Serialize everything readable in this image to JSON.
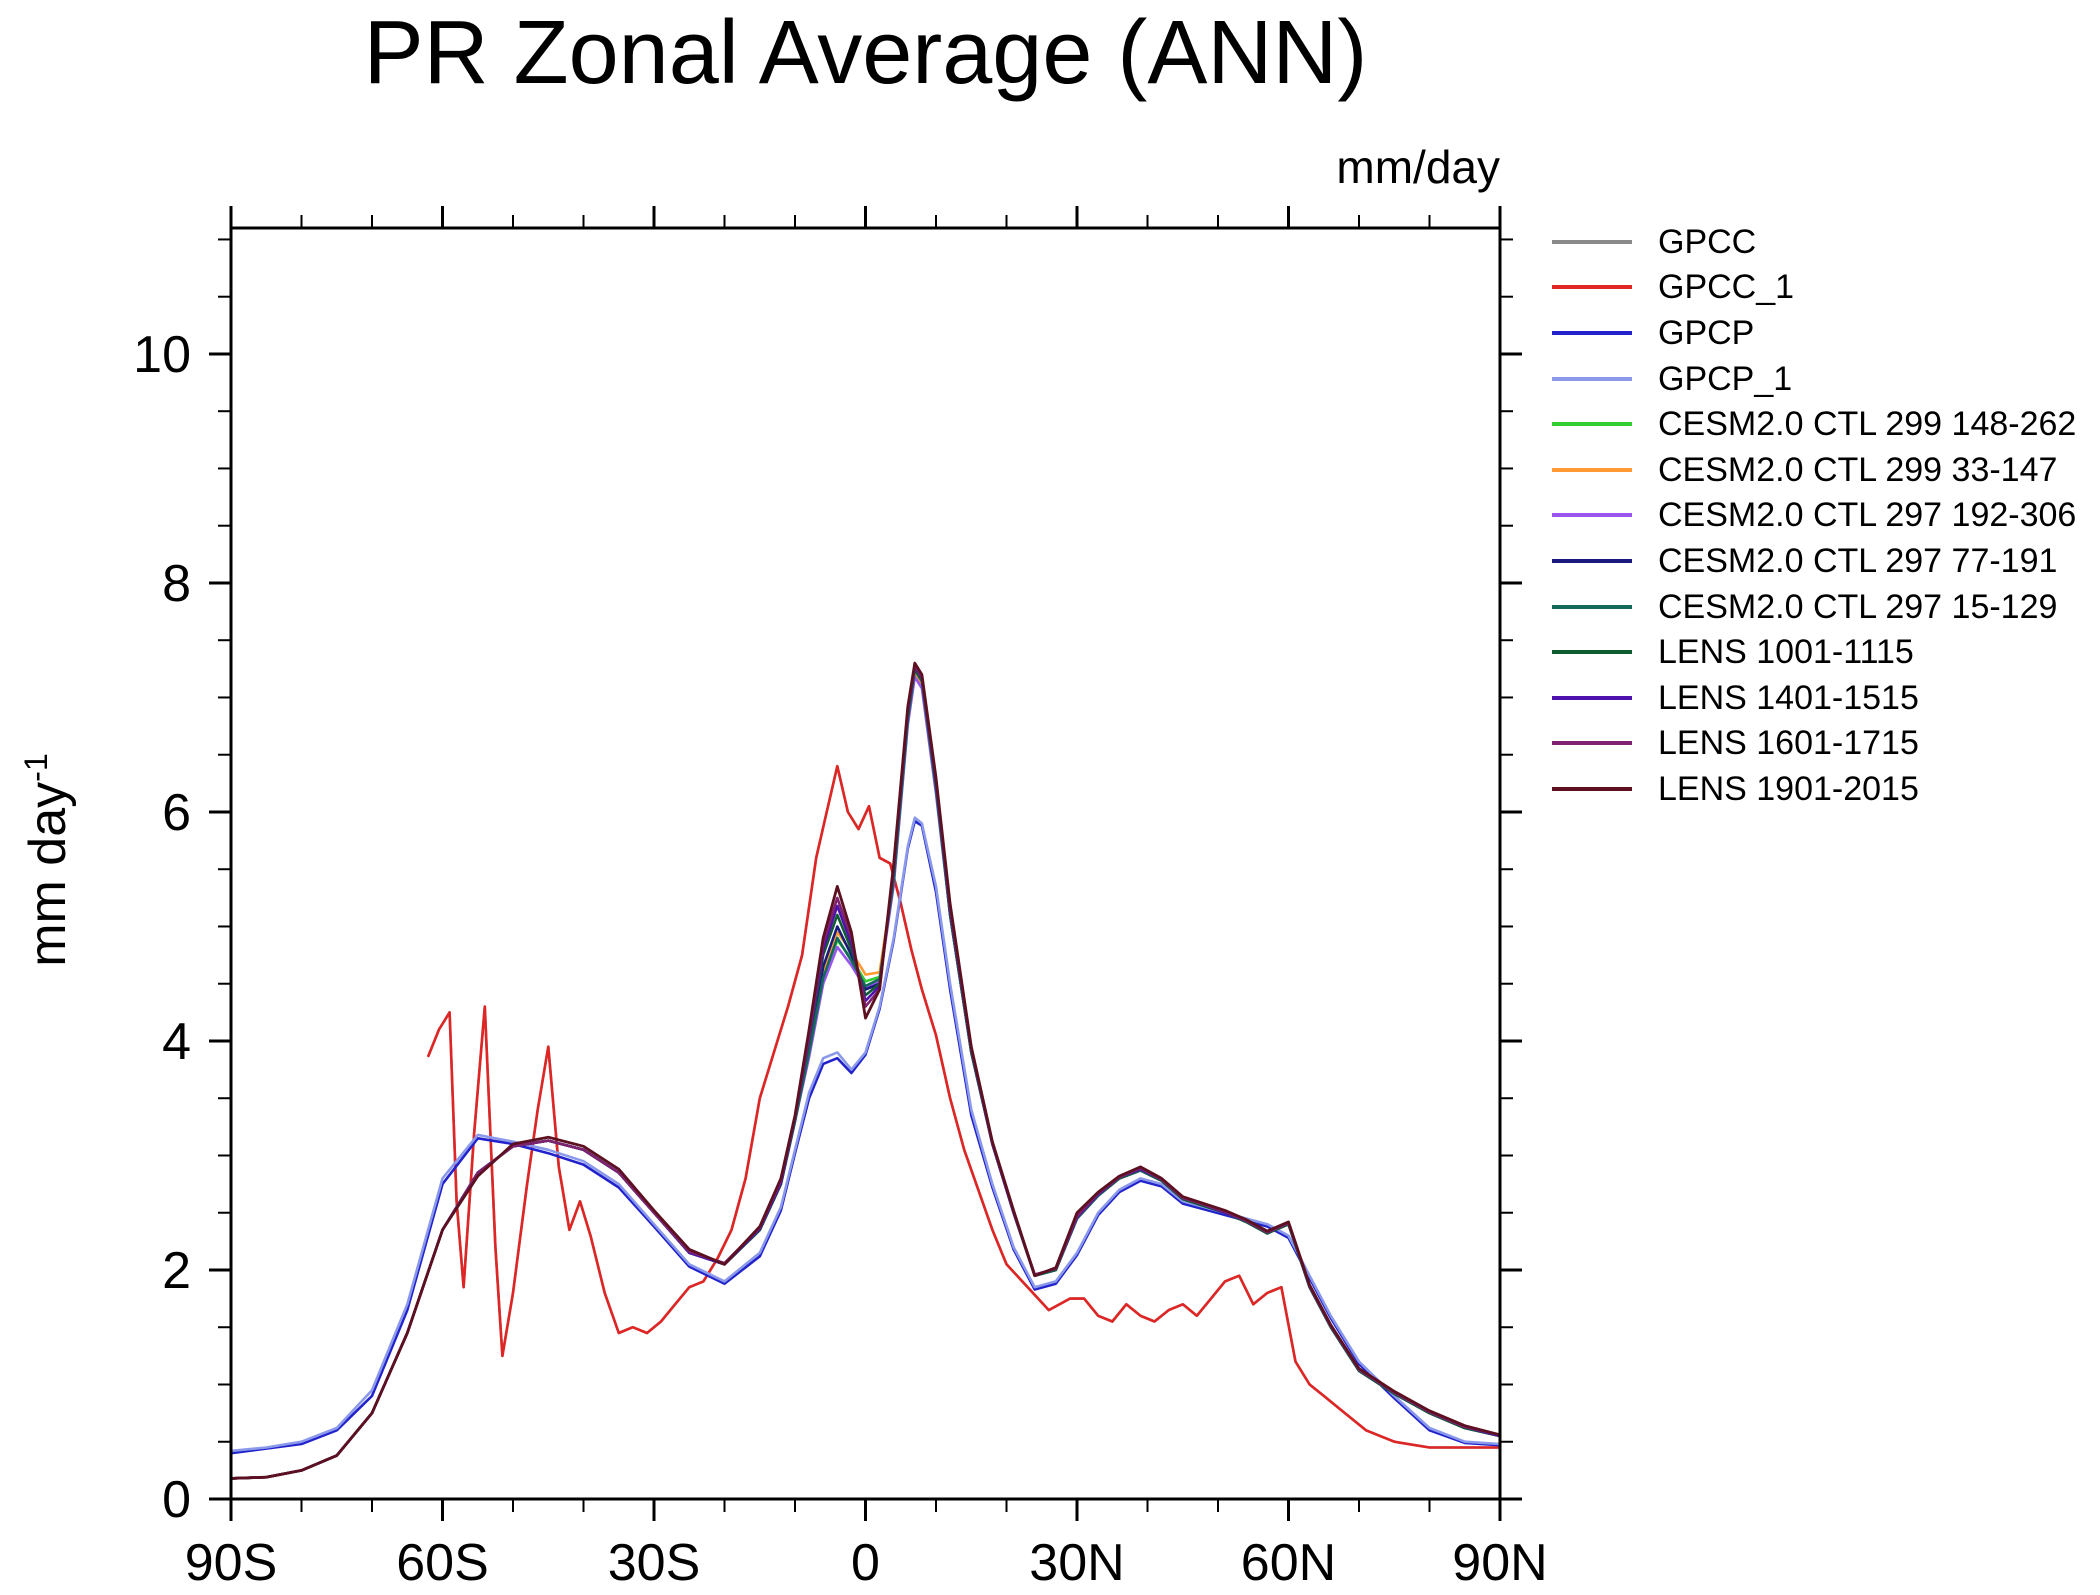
{
  "chart_data": {
    "type": "line",
    "title": "PR Zonal Average (ANN)",
    "units_label": "mm/day",
    "ylabel": {
      "text": "mm day",
      "exponent": "-1"
    },
    "xlim": [
      -90,
      90
    ],
    "ylim": [
      0,
      11.1
    ],
    "x_major_ticks": [
      -90,
      -60,
      -30,
      0,
      30,
      60,
      90
    ],
    "x_tick_labels": [
      "90S",
      "60S",
      "30S",
      "0",
      "30N",
      "60N",
      "90N"
    ],
    "x_minor_step": 10,
    "y_major_ticks": [
      0,
      2,
      4,
      6,
      8,
      10
    ],
    "y_tick_labels": [
      "0",
      "2",
      "4",
      "6",
      "8",
      "10"
    ],
    "y_minor_step": 0.5,
    "legend_position": "right",
    "grid": false,
    "x_smooth": [
      -90,
      -85,
      -80,
      -75,
      -70,
      -65,
      -60,
      -55,
      -50,
      -45,
      -40,
      -35,
      -30,
      -25,
      -20,
      -15,
      -12,
      -10,
      -8,
      -6,
      -4,
      -2,
      0,
      2,
      4,
      6,
      7,
      8,
      10,
      12,
      15,
      18,
      21,
      24,
      27,
      30,
      33,
      36,
      39,
      42,
      45,
      48,
      51,
      54,
      57,
      60,
      63,
      66,
      70,
      75,
      80,
      85,
      90
    ],
    "x_land": [
      -62,
      -60.5,
      -59,
      -58,
      -57,
      -55.5,
      -54,
      -52.5,
      -51.5,
      -50,
      -48,
      -46.5,
      -45,
      -43.5,
      -42,
      -40.5,
      -39,
      -37,
      -35,
      -33,
      -31,
      -29,
      -27,
      -25,
      -23,
      -21,
      -19,
      -17,
      -15,
      -13,
      -11,
      -9,
      -7,
      -5.5,
      -4,
      -2.5,
      -1,
      0.5,
      2,
      3.5,
      5,
      6.5,
      8,
      10,
      12,
      14,
      16,
      18,
      20,
      23,
      26,
      29,
      31,
      33,
      35,
      37,
      39,
      41,
      43,
      45,
      47,
      49,
      51,
      53,
      55,
      57,
      59,
      61,
      63,
      65,
      68,
      71,
      75,
      80,
      85,
      90
    ],
    "series": [
      {
        "id": "gpcc",
        "name": "GPCC",
        "color": "#898989",
        "width": 2.6,
        "x": "x_land",
        "y": [
          3.87,
          4.1,
          4.25,
          2.6,
          1.85,
          3.2,
          4.3,
          2.2,
          1.25,
          1.8,
          2.75,
          3.4,
          3.95,
          2.9,
          2.35,
          2.6,
          2.3,
          1.8,
          1.45,
          1.5,
          1.45,
          1.55,
          1.7,
          1.85,
          1.9,
          2.1,
          2.35,
          2.8,
          3.5,
          3.9,
          4.3,
          4.75,
          5.6,
          6.0,
          6.4,
          6.0,
          5.85,
          6.05,
          5.6,
          5.55,
          5.2,
          4.8,
          4.45,
          4.05,
          3.5,
          3.05,
          2.7,
          2.35,
          2.05,
          1.85,
          1.65,
          1.75,
          1.75,
          1.6,
          1.55,
          1.7,
          1.6,
          1.55,
          1.65,
          1.7,
          1.6,
          1.75,
          1.9,
          1.95,
          1.7,
          1.8,
          1.85,
          1.2,
          1.0,
          0.9,
          0.75,
          0.6,
          0.5,
          0.45,
          0.45,
          0.45
        ]
      },
      {
        "id": "gpcc-1",
        "name": "GPCC_1",
        "color": "#e02525",
        "width": 2.6,
        "x": "x_land",
        "y": [
          3.87,
          4.1,
          4.25,
          2.6,
          1.85,
          3.2,
          4.3,
          2.2,
          1.25,
          1.8,
          2.75,
          3.4,
          3.95,
          2.9,
          2.35,
          2.6,
          2.3,
          1.8,
          1.45,
          1.5,
          1.45,
          1.55,
          1.7,
          1.85,
          1.9,
          2.1,
          2.35,
          2.8,
          3.5,
          3.9,
          4.3,
          4.75,
          5.6,
          6.0,
          6.4,
          6.0,
          5.85,
          6.05,
          5.6,
          5.55,
          5.2,
          4.8,
          4.45,
          4.05,
          3.5,
          3.05,
          2.7,
          2.35,
          2.05,
          1.85,
          1.65,
          1.75,
          1.75,
          1.6,
          1.55,
          1.7,
          1.6,
          1.55,
          1.65,
          1.7,
          1.6,
          1.75,
          1.9,
          1.95,
          1.7,
          1.8,
          1.85,
          1.2,
          1.0,
          0.9,
          0.75,
          0.6,
          0.5,
          0.45,
          0.45,
          0.45
        ]
      },
      {
        "id": "gpcp",
        "name": "GPCP",
        "color": "#2222cc",
        "width": 2.6,
        "x": "x_smooth",
        "y": [
          0.4,
          0.44,
          0.48,
          0.6,
          0.9,
          1.65,
          2.75,
          3.15,
          3.1,
          3.02,
          2.92,
          2.72,
          2.38,
          2.03,
          1.88,
          2.12,
          2.52,
          3.02,
          3.5,
          3.8,
          3.85,
          3.72,
          3.88,
          4.28,
          4.88,
          5.68,
          5.92,
          5.88,
          5.3,
          4.45,
          3.35,
          2.72,
          2.18,
          1.83,
          1.88,
          2.13,
          2.48,
          2.68,
          2.78,
          2.73,
          2.58,
          2.53,
          2.48,
          2.43,
          2.38,
          2.28,
          1.93,
          1.58,
          1.18,
          0.88,
          0.6,
          0.49,
          0.47
        ]
      },
      {
        "id": "gpcp-1",
        "name": "GPCP_1",
        "color": "#8a99ea",
        "width": 2.6,
        "x": "x_smooth",
        "y": [
          0.42,
          0.45,
          0.5,
          0.62,
          0.95,
          1.7,
          2.8,
          3.18,
          3.12,
          3.05,
          2.95,
          2.75,
          2.4,
          2.05,
          1.9,
          2.15,
          2.55,
          3.05,
          3.55,
          3.85,
          3.9,
          3.75,
          3.9,
          4.3,
          4.9,
          5.7,
          5.95,
          5.9,
          5.35,
          4.5,
          3.4,
          2.75,
          2.2,
          1.85,
          1.9,
          2.15,
          2.5,
          2.7,
          2.8,
          2.75,
          2.6,
          2.55,
          2.5,
          2.45,
          2.4,
          2.3,
          1.95,
          1.6,
          1.2,
          0.9,
          0.62,
          0.5,
          0.48
        ]
      },
      {
        "id": "cesm20-ctl-299-148-262",
        "name": "CESM2.0 CTL 299 148-262",
        "color": "#33cc33",
        "width": 2.6,
        "x": "x_smooth",
        "y": [
          0.18,
          0.19,
          0.25,
          0.38,
          0.75,
          1.45,
          2.35,
          2.85,
          3.08,
          3.13,
          3.05,
          2.85,
          2.5,
          2.15,
          2.05,
          2.35,
          2.75,
          3.3,
          3.88,
          4.52,
          4.88,
          4.72,
          4.52,
          4.56,
          5.38,
          6.78,
          7.22,
          7.12,
          6.18,
          5.1,
          3.9,
          3.1,
          2.5,
          1.95,
          2.0,
          2.45,
          2.65,
          2.8,
          2.87,
          2.78,
          2.62,
          2.56,
          2.5,
          2.42,
          2.32,
          2.4,
          1.85,
          1.5,
          1.12,
          0.92,
          0.75,
          0.62,
          0.55
        ]
      },
      {
        "id": "cesm20-ctl-299-33-147",
        "name": "CESM2.0 CTL 299 33-147",
        "color": "#ff9933",
        "width": 2.6,
        "x": "x_smooth",
        "y": [
          0.18,
          0.19,
          0.25,
          0.38,
          0.75,
          1.45,
          2.35,
          2.85,
          3.08,
          3.13,
          3.05,
          2.85,
          2.5,
          2.15,
          2.05,
          2.35,
          2.75,
          3.3,
          3.92,
          4.6,
          4.95,
          4.78,
          4.58,
          4.6,
          5.42,
          6.82,
          7.2,
          7.1,
          6.22,
          5.1,
          3.9,
          3.1,
          2.5,
          1.95,
          2.0,
          2.45,
          2.65,
          2.8,
          2.87,
          2.78,
          2.62,
          2.56,
          2.5,
          2.42,
          2.32,
          2.4,
          1.85,
          1.5,
          1.12,
          0.92,
          0.75,
          0.62,
          0.55
        ]
      },
      {
        "id": "cesm20-ctl-297-192-306",
        "name": "CESM2.0 CTL 297 192-306",
        "color": "#9955ee",
        "width": 2.6,
        "x": "x_smooth",
        "y": [
          0.18,
          0.19,
          0.25,
          0.38,
          0.75,
          1.45,
          2.35,
          2.85,
          3.08,
          3.13,
          3.05,
          2.85,
          2.5,
          2.15,
          2.05,
          2.35,
          2.75,
          3.3,
          3.86,
          4.5,
          4.82,
          4.66,
          4.46,
          4.52,
          5.36,
          6.76,
          7.18,
          7.08,
          6.16,
          5.1,
          3.9,
          3.1,
          2.5,
          1.95,
          2.0,
          2.45,
          2.65,
          2.8,
          2.87,
          2.78,
          2.62,
          2.56,
          2.5,
          2.42,
          2.32,
          2.4,
          1.85,
          1.5,
          1.12,
          0.92,
          0.75,
          0.62,
          0.55
        ]
      },
      {
        "id": "cesm20-ctl-297-77-191",
        "name": "CESM2.0 CTL 297 77-191",
        "color": "#1a1a7e",
        "width": 2.6,
        "x": "x_smooth",
        "y": [
          0.18,
          0.19,
          0.25,
          0.38,
          0.75,
          1.45,
          2.35,
          2.85,
          3.08,
          3.13,
          3.05,
          2.85,
          2.5,
          2.15,
          2.05,
          2.35,
          2.75,
          3.3,
          3.95,
          4.65,
          5.0,
          4.75,
          4.45,
          4.5,
          5.45,
          6.85,
          7.28,
          7.18,
          6.25,
          5.1,
          3.9,
          3.1,
          2.5,
          1.95,
          2.0,
          2.45,
          2.65,
          2.8,
          2.87,
          2.78,
          2.62,
          2.56,
          2.5,
          2.42,
          2.32,
          2.4,
          1.85,
          1.5,
          1.12,
          0.92,
          0.75,
          0.62,
          0.55
        ]
      },
      {
        "id": "cesm20-ctl-297-15-129",
        "name": "CESM2.0 CTL 297 15-129",
        "color": "#146a5a",
        "width": 2.6,
        "x": "x_smooth",
        "y": [
          0.18,
          0.19,
          0.25,
          0.38,
          0.75,
          1.45,
          2.35,
          2.85,
          3.08,
          3.13,
          3.05,
          2.85,
          2.5,
          2.15,
          2.05,
          2.35,
          2.75,
          3.3,
          3.9,
          4.55,
          4.9,
          4.7,
          4.48,
          4.54,
          5.4,
          6.8,
          7.24,
          7.14,
          6.2,
          5.1,
          3.9,
          3.1,
          2.5,
          1.95,
          2.0,
          2.45,
          2.65,
          2.8,
          2.87,
          2.78,
          2.62,
          2.56,
          2.5,
          2.42,
          2.32,
          2.4,
          1.85,
          1.5,
          1.12,
          0.92,
          0.75,
          0.62,
          0.55
        ]
      },
      {
        "id": "lens-1001-1115",
        "name": "LENS 1001-1115",
        "color": "#0e5c2f",
        "width": 2.6,
        "x": "x_smooth",
        "y": [
          0.18,
          0.19,
          0.25,
          0.38,
          0.75,
          1.45,
          2.35,
          2.85,
          3.08,
          3.13,
          3.05,
          2.85,
          2.5,
          2.15,
          2.05,
          2.35,
          2.75,
          3.32,
          4.0,
          4.75,
          5.1,
          4.8,
          4.4,
          4.5,
          5.48,
          6.86,
          7.25,
          7.15,
          6.24,
          5.12,
          3.92,
          3.1,
          2.5,
          1.96,
          2.0,
          2.46,
          2.66,
          2.8,
          2.88,
          2.78,
          2.62,
          2.56,
          2.5,
          2.42,
          2.32,
          2.4,
          1.85,
          1.5,
          1.12,
          0.92,
          0.75,
          0.62,
          0.55
        ]
      },
      {
        "id": "lens-1401-1515",
        "name": "LENS 1401-1515",
        "color": "#4e11ae",
        "width": 2.6,
        "x": "x_smooth",
        "y": [
          0.18,
          0.19,
          0.25,
          0.38,
          0.75,
          1.45,
          2.35,
          2.85,
          3.08,
          3.13,
          3.05,
          2.85,
          2.5,
          2.15,
          2.05,
          2.36,
          2.76,
          3.33,
          4.02,
          4.8,
          5.18,
          4.85,
          4.35,
          4.48,
          5.5,
          6.88,
          7.27,
          7.17,
          6.26,
          5.14,
          3.93,
          3.1,
          2.5,
          1.96,
          2.01,
          2.46,
          2.66,
          2.81,
          2.88,
          2.79,
          2.63,
          2.57,
          2.5,
          2.43,
          2.33,
          2.41,
          1.86,
          1.51,
          1.13,
          0.93,
          0.76,
          0.63,
          0.55
        ]
      },
      {
        "id": "lens-1601-1715",
        "name": "LENS 1601-1715",
        "color": "#7e2270",
        "width": 2.6,
        "x": "x_smooth",
        "y": [
          0.18,
          0.19,
          0.25,
          0.38,
          0.75,
          1.45,
          2.35,
          2.85,
          3.08,
          3.13,
          3.05,
          2.85,
          2.5,
          2.16,
          2.06,
          2.37,
          2.78,
          3.34,
          4.05,
          4.85,
          5.25,
          4.9,
          4.3,
          4.45,
          5.52,
          6.9,
          7.28,
          7.18,
          6.28,
          5.16,
          3.94,
          3.11,
          2.51,
          1.96,
          2.01,
          2.47,
          2.67,
          2.81,
          2.89,
          2.79,
          2.63,
          2.57,
          2.51,
          2.43,
          2.33,
          2.41,
          1.86,
          1.51,
          1.13,
          0.93,
          0.76,
          0.63,
          0.56
        ]
      },
      {
        "id": "lens-1901-2015",
        "name": "LENS 1901-2015",
        "color": "#5c1020",
        "width": 2.8,
        "x": "x_smooth",
        "y": [
          0.18,
          0.19,
          0.25,
          0.38,
          0.75,
          1.45,
          2.35,
          2.82,
          3.1,
          3.16,
          3.08,
          2.88,
          2.52,
          2.18,
          2.05,
          2.38,
          2.8,
          3.35,
          4.1,
          4.9,
          5.35,
          4.95,
          4.2,
          4.45,
          5.55,
          6.92,
          7.3,
          7.2,
          6.3,
          5.2,
          3.95,
          3.12,
          2.52,
          1.95,
          2.02,
          2.5,
          2.68,
          2.82,
          2.9,
          2.8,
          2.64,
          2.58,
          2.52,
          2.44,
          2.34,
          2.42,
          1.87,
          1.52,
          1.14,
          0.94,
          0.77,
          0.64,
          0.56
        ]
      }
    ]
  }
}
